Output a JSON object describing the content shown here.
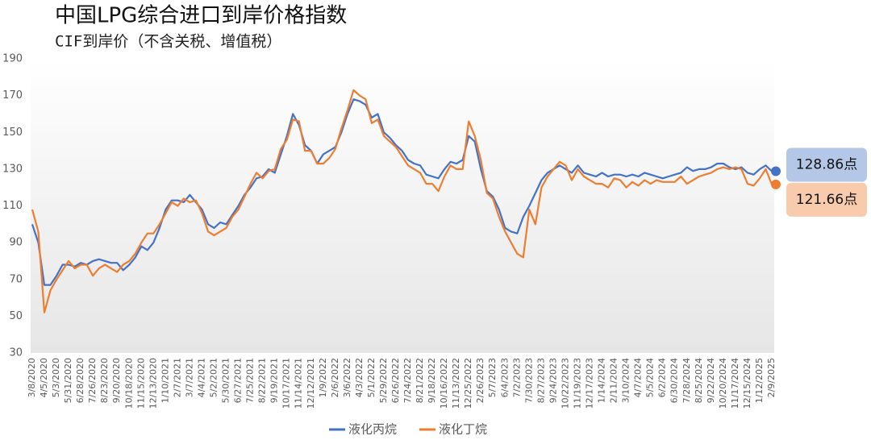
{
  "chart_data": {
    "type": "line",
    "title": "中国LPG综合进口到岸价格指数",
    "subtitle": "CIF到岸价（不含关税、增值税）",
    "categories": [
      "3/8/2020",
      null,
      "4/5/2020",
      null,
      "5/3/2020",
      null,
      "5/31/2020",
      null,
      "6/28/2020",
      null,
      "7/26/2020",
      null,
      "8/23/2020",
      null,
      "9/20/2020",
      null,
      "10/18/2020",
      null,
      "11/15/2020",
      null,
      "12/13/2020",
      null,
      "1/10/2021",
      null,
      "2/7/2021",
      null,
      "3/7/2021",
      null,
      "4/4/2021",
      null,
      "5/2/2021",
      null,
      "5/30/2021",
      null,
      "6/27/2021",
      null,
      "7/25/2021",
      null,
      "8/22/2021",
      null,
      "9/19/2021",
      null,
      "10/17/2021",
      null,
      "11/14/2021",
      null,
      "12/12/2021",
      null,
      "1/9/2022",
      null,
      "2/6/2022",
      null,
      "3/6/2022",
      null,
      "4/3/2022",
      null,
      "5/1/2022",
      null,
      "5/29/2022",
      null,
      "6/26/2022",
      null,
      "7/24/2022",
      null,
      "8/21/2022",
      null,
      "9/18/2022",
      null,
      "10/16/2022",
      null,
      "11/13/2022",
      null,
      "12/25/2022",
      null,
      "2/26/2023",
      null,
      "5/7/2023",
      null,
      "6/4/2023",
      null,
      "7/2/2023",
      null,
      "7/30/2023",
      null,
      "8/27/2023",
      null,
      "9/24/2023",
      null,
      "10/22/2023",
      null,
      "11/19/2023",
      null,
      "12/17/2023",
      null,
      "1/14/2024",
      null,
      "2/11/2024",
      null,
      "3/10/2024",
      null,
      "4/7/2024",
      null,
      "5/5/2024",
      null,
      "6/2/2024",
      null,
      "6/30/2024",
      null,
      "7/28/2024",
      null,
      "8/25/2024",
      null,
      "9/22/2024",
      null,
      "10/20/2024",
      null,
      "11/17/2024",
      null,
      "12/15/2024",
      null,
      "1/12/2025",
      null,
      "2/9/2025"
    ],
    "series": [
      {
        "name": "液化丙烷",
        "color": "#4472c4",
        "values": [
          100,
          90,
          67,
          67,
          72,
          78,
          78,
          77,
          79,
          78,
          80,
          81,
          80,
          79,
          79,
          75,
          78,
          82,
          88,
          86,
          90,
          98,
          108,
          113,
          113,
          112,
          116,
          112,
          108,
          100,
          98,
          101,
          100,
          105,
          110,
          116,
          120,
          125,
          126,
          130,
          128,
          138,
          148,
          160,
          154,
          143,
          140,
          133,
          138,
          140,
          142,
          150,
          160,
          168,
          167,
          165,
          158,
          160,
          150,
          147,
          143,
          140,
          135,
          133,
          132,
          127,
          126,
          125,
          130,
          134,
          133,
          135,
          148,
          145,
          130,
          118,
          115,
          108,
          98,
          96,
          95,
          104,
          110,
          117,
          124,
          128,
          130,
          132,
          130,
          128,
          132,
          128,
          127,
          126,
          128,
          126,
          127,
          127,
          126,
          127,
          126,
          128,
          127,
          126,
          125,
          126,
          127,
          128,
          131,
          129,
          130,
          130,
          131,
          133,
          133,
          131,
          130,
          131,
          128,
          127,
          130,
          132,
          128.86
        ],
        "value_labels": [
          null,
          null,
          null,
          null,
          null,
          null,
          null,
          null,
          null,
          null,
          null,
          null,
          null,
          null,
          null,
          null,
          null,
          null,
          null,
          null,
          null,
          null,
          null,
          null,
          null,
          null,
          null,
          null,
          null,
          null,
          null,
          null,
          null,
          null,
          null,
          null,
          null,
          null,
          null,
          null,
          null,
          null,
          null,
          null,
          null,
          null,
          null,
          null,
          null,
          null,
          null,
          null,
          null,
          null,
          null,
          null,
          null,
          null,
          null,
          null,
          null,
          null,
          null,
          null,
          null,
          null,
          null,
          null,
          null,
          null,
          null,
          null,
          null,
          null,
          null,
          null,
          null,
          null,
          null,
          null,
          null,
          null,
          null,
          null,
          null,
          null,
          null,
          null,
          null,
          null,
          null,
          null,
          null,
          null,
          null,
          null,
          null,
          null,
          null,
          null,
          null,
          null,
          null,
          null,
          null,
          null,
          null,
          null,
          null,
          null,
          null,
          null,
          null,
          null,
          null,
          null,
          null,
          null,
          null,
          null,
          null,
          null,
          "128.86点"
        ]
      },
      {
        "name": "液化丁烷",
        "color": "#ed7d31",
        "values": [
          108,
          96,
          52,
          64,
          70,
          75,
          80,
          76,
          78,
          78,
          72,
          76,
          78,
          76,
          74,
          78,
          80,
          84,
          90,
          95,
          95,
          100,
          106,
          112,
          110,
          114,
          112,
          113,
          106,
          96,
          94,
          96,
          98,
          104,
          108,
          115,
          122,
          128,
          125,
          129,
          130,
          141,
          146,
          157,
          156,
          140,
          140,
          133,
          133,
          136,
          141,
          152,
          162,
          173,
          170,
          168,
          155,
          157,
          148,
          145,
          142,
          137,
          132,
          130,
          128,
          122,
          122,
          118,
          126,
          132,
          130,
          130,
          156,
          148,
          135,
          117,
          114,
          104,
          96,
          90,
          84,
          82,
          108,
          100,
          120,
          126,
          130,
          134,
          132,
          124,
          130,
          126,
          124,
          122,
          122,
          120,
          125,
          124,
          120,
          123,
          121,
          124,
          122,
          124,
          123,
          123,
          123,
          126,
          122,
          124,
          126,
          127,
          128,
          130,
          131,
          130,
          131,
          130,
          122,
          121,
          125,
          130,
          121.66
        ],
        "value_labels": [
          null,
          null,
          null,
          null,
          null,
          null,
          null,
          null,
          null,
          null,
          null,
          null,
          null,
          null,
          null,
          null,
          null,
          null,
          null,
          null,
          null,
          null,
          null,
          null,
          null,
          null,
          null,
          null,
          null,
          null,
          null,
          null,
          null,
          null,
          null,
          null,
          null,
          null,
          null,
          null,
          null,
          null,
          null,
          null,
          null,
          null,
          null,
          null,
          null,
          null,
          null,
          null,
          null,
          null,
          null,
          null,
          null,
          null,
          null,
          null,
          null,
          null,
          null,
          null,
          null,
          null,
          null,
          null,
          null,
          null,
          null,
          null,
          null,
          null,
          null,
          null,
          null,
          null,
          null,
          null,
          null,
          null,
          null,
          null,
          null,
          null,
          null,
          null,
          null,
          null,
          null,
          null,
          null,
          null,
          null,
          null,
          null,
          null,
          null,
          null,
          null,
          null,
          null,
          null,
          null,
          null,
          null,
          null,
          null,
          null,
          null,
          null,
          null,
          null,
          null,
          null,
          null,
          null,
          null,
          null,
          null,
          null,
          "121.66点"
        ]
      }
    ],
    "ylim": [
      30,
      190
    ],
    "yticks": [
      30,
      50,
      70,
      90,
      110,
      130,
      150,
      170,
      190
    ],
    "grid": false,
    "legend": "bottom"
  }
}
